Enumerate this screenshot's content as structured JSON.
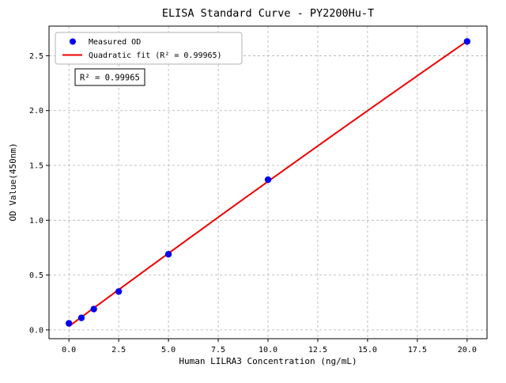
{
  "chart_data": {
    "type": "scatter",
    "title": "ELISA Standard Curve - PY2200Hu-T",
    "xlabel": "Human LILRA3 Concentration (ng/mL)",
    "ylabel": "OD Value(450nm)",
    "xlim": [
      -1,
      21
    ],
    "ylim": [
      -0.08,
      2.77
    ],
    "xticks": [
      0.0,
      2.5,
      5.0,
      7.5,
      10.0,
      12.5,
      15.0,
      17.5,
      20.0
    ],
    "yticks": [
      0.0,
      0.5,
      1.0,
      1.5,
      2.0,
      2.5
    ],
    "grid": true,
    "legend_position": "upper left",
    "series": [
      {
        "name": "Measured OD",
        "type": "scatter",
        "color": "#0000ee",
        "x": [
          0,
          0.625,
          1.25,
          2.5,
          5,
          10,
          20
        ],
        "y": [
          0.06,
          0.11,
          0.19,
          0.35,
          0.69,
          1.37,
          2.63
        ]
      },
      {
        "name": "Quadratic fit (R² = 0.99965)",
        "type": "line",
        "color": "#ee0000",
        "fit": "quadratic"
      }
    ],
    "annotation": "R² = 0.99965",
    "colors": {
      "scatter": "#0000ee",
      "fit_line": "#ee0000",
      "grid": "#b0b0b0",
      "axes": "#000000"
    }
  }
}
